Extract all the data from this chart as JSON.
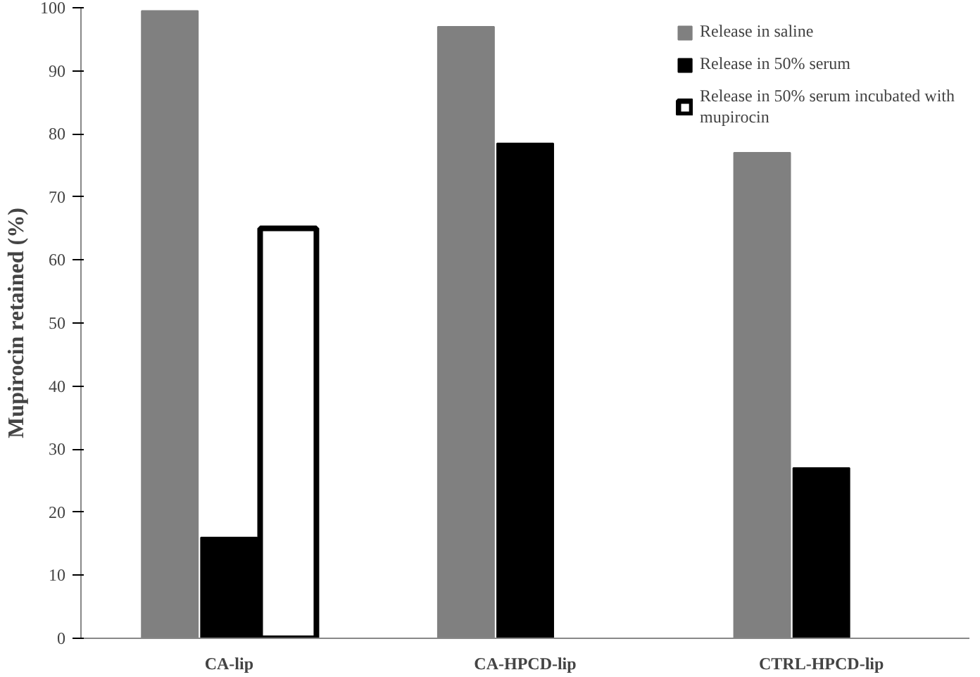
{
  "chart_data": {
    "type": "bar",
    "ylabel": "Mupirocin retained (%)",
    "categories": [
      "CA-lip",
      "CA-HPCD-lip",
      "CTRL-HPCD-lip"
    ],
    "series": [
      {
        "name": "Release in saline",
        "color": "#808080",
        "values": [
          99.5,
          97,
          77
        ]
      },
      {
        "name": "Release in 50% serum",
        "color": "#000000",
        "values": [
          16,
          78.5,
          27
        ]
      },
      {
        "name": "Release in 50% serum incubated with mupirocin",
        "color": "#ffffff",
        "values": [
          65,
          null,
          null
        ]
      }
    ],
    "ylim": [
      0,
      100
    ],
    "yticks": [
      0,
      10,
      20,
      30,
      40,
      50,
      60,
      70,
      80,
      90,
      100
    ],
    "grid": false,
    "legend": "top right"
  }
}
